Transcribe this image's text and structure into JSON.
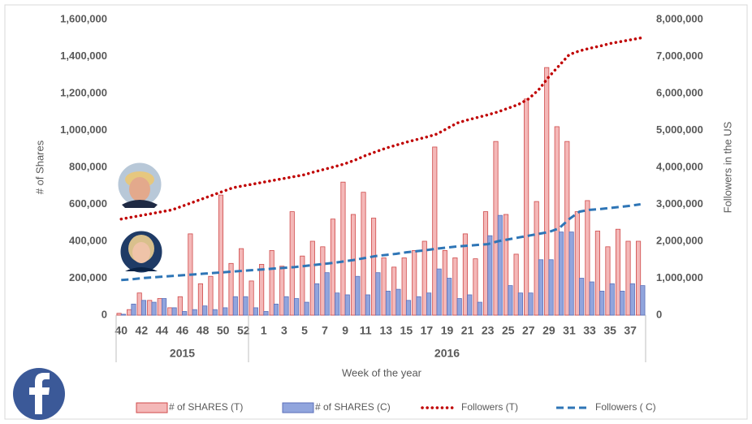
{
  "chart_data": {
    "type": "bar-line",
    "x_label": "Week of the year",
    "y_label": "# of Shares",
    "y2_label": "Followers in the US",
    "years": [
      "2015",
      "2016"
    ],
    "categories": [
      "40",
      null,
      "42",
      null,
      "44",
      null,
      "46",
      null,
      "48",
      null,
      "50",
      null,
      "52",
      null,
      "1",
      null,
      "3",
      null,
      "5",
      null,
      "7",
      null,
      "9",
      null,
      "11",
      null,
      "13",
      null,
      "15",
      null,
      "17",
      null,
      "19",
      null,
      "21",
      null,
      "23",
      null,
      "25",
      null,
      "27",
      null,
      "29",
      null,
      "31",
      null,
      "33",
      null,
      "35",
      null,
      "37",
      null
    ],
    "series": [
      {
        "name": "# of SHARES (T)",
        "kind": "bar",
        "color": "#f4b8b8",
        "edge": "#cf4a4a",
        "values": [
          10000,
          30000,
          120000,
          80000,
          90000,
          40000,
          100000,
          440000,
          170000,
          210000,
          650000,
          280000,
          360000,
          185000,
          275000,
          350000,
          265000,
          560000,
          320000,
          400000,
          370000,
          520000,
          720000,
          545000,
          665000,
          525000,
          310000,
          260000,
          310000,
          350000,
          400000,
          910000,
          350000,
          310000,
          440000,
          305000,
          560000,
          940000,
          545000,
          330000,
          1170000,
          615000,
          1340000,
          1020000,
          940000,
          560000,
          620000,
          455000,
          370000,
          465000,
          400000,
          400000
        ]
      },
      {
        "name": "# of SHARES (C)",
        "kind": "bar",
        "color": "#91a5dd",
        "edge": "#5b6fb9",
        "values": [
          5000,
          60000,
          80000,
          70000,
          90000,
          40000,
          20000,
          30000,
          50000,
          30000,
          40000,
          100000,
          100000,
          40000,
          20000,
          60000,
          100000,
          90000,
          70000,
          170000,
          230000,
          120000,
          110000,
          210000,
          110000,
          230000,
          130000,
          140000,
          80000,
          100000,
          120000,
          250000,
          200000,
          90000,
          110000,
          70000,
          430000,
          540000,
          160000,
          120000,
          120000,
          300000,
          300000,
          450000,
          450000,
          200000,
          180000,
          130000,
          170000,
          130000,
          170000,
          160000
        ]
      },
      {
        "name": "Followers (T)",
        "kind": "dotted",
        "axis": "y2",
        "color": "#c00000",
        "values": [
          2600000,
          2650000,
          2700000,
          2750000,
          2800000,
          2850000,
          2950000,
          3050000,
          3150000,
          3250000,
          3350000,
          3450000,
          3500000,
          3550000,
          3600000,
          3650000,
          3700000,
          3750000,
          3800000,
          3880000,
          3950000,
          4020000,
          4100000,
          4200000,
          4320000,
          4420000,
          4520000,
          4600000,
          4680000,
          4750000,
          4820000,
          4900000,
          5050000,
          5200000,
          5280000,
          5350000,
          5420000,
          5500000,
          5600000,
          5700000,
          5850000,
          6100000,
          6450000,
          6750000,
          7050000,
          7150000,
          7220000,
          7280000,
          7350000,
          7400000,
          7450000,
          7500000
        ]
      },
      {
        "name": "Followers ( C)",
        "kind": "dashed",
        "axis": "y2",
        "color": "#2e75b6",
        "values": [
          950000,
          970000,
          1000000,
          1020000,
          1040000,
          1060000,
          1080000,
          1100000,
          1120000,
          1140000,
          1160000,
          1180000,
          1200000,
          1220000,
          1240000,
          1260000,
          1280000,
          1300000,
          1330000,
          1360000,
          1390000,
          1420000,
          1460000,
          1500000,
          1550000,
          1600000,
          1630000,
          1660000,
          1700000,
          1730000,
          1760000,
          1800000,
          1830000,
          1860000,
          1880000,
          1900000,
          1920000,
          2000000,
          2050000,
          2100000,
          2150000,
          2200000,
          2250000,
          2350000,
          2600000,
          2800000,
          2850000,
          2870000,
          2900000,
          2930000,
          2960000,
          3000000
        ]
      }
    ],
    "ylim": [
      0,
      1600000
    ],
    "yticks": [
      0,
      {
        "value": 200000,
        "label": "200,000"
      },
      {
        "value": 400000,
        "label": "400,000"
      },
      {
        "value": 600000,
        "label": "600,000"
      },
      {
        "value": 800000,
        "label": "800,000"
      },
      {
        "value": 1000000,
        "label": "1,000,000"
      },
      {
        "value": 1200000,
        "label": "1,200,000"
      },
      {
        "value": 1400000,
        "label": "1,400,000"
      },
      {
        "value": 1600000,
        "label": "1,600,000"
      }
    ],
    "y2lim": [
      0,
      8000000
    ],
    "y2ticks": [
      0,
      {
        "value": 1000000,
        "label": "1,000,000"
      },
      {
        "value": 2000000,
        "label": "2,000,000"
      },
      {
        "value": 3000000,
        "label": "3,000,000"
      },
      {
        "value": 4000000,
        "label": "4,000,000"
      },
      {
        "value": 5000000,
        "label": "5,000,000"
      },
      {
        "value": 6000000,
        "label": "6,000,000"
      },
      {
        "value": 7000000,
        "label": "7,000,000"
      },
      {
        "value": 8000000,
        "label": "8,000,000"
      }
    ],
    "grid": false,
    "legend": "bottom"
  }
}
